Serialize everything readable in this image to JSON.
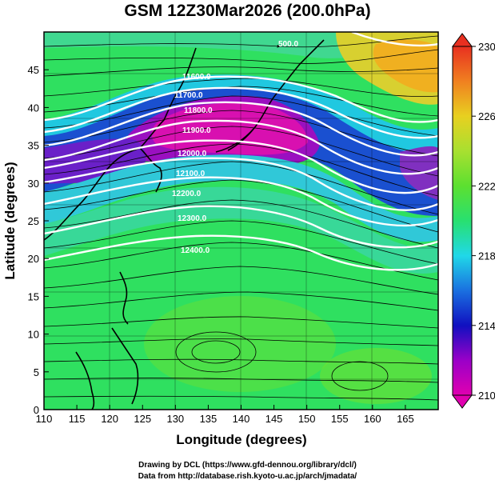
{
  "title": "GSM 12Z30Mar2026 (200.0hPa)",
  "x_axis": {
    "label": "Longitude (degrees)",
    "range": [
      110,
      170
    ],
    "ticks": [
      "110",
      "115",
      "120",
      "125",
      "130",
      "135",
      "140",
      "145",
      "150",
      "155",
      "160",
      "165"
    ]
  },
  "y_axis": {
    "label": "Latitude (degrees)",
    "range": [
      0,
      50
    ],
    "ticks": [
      "0",
      "5",
      "10",
      "15",
      "20",
      "25",
      "30",
      "35",
      "40",
      "45"
    ]
  },
  "colorbar": {
    "range": [
      210,
      230
    ],
    "ticks": [
      "210",
      "214",
      "218",
      "222",
      "226",
      "230"
    ],
    "colors": [
      "#e000b0",
      "#9a00c8",
      "#1010c0",
      "#1a70e0",
      "#20d8e8",
      "#28e070",
      "#70e030",
      "#c8e030",
      "#f0c020",
      "#f08020",
      "#e83020"
    ]
  },
  "contours": [
    {
      "label": "11600.0"
    },
    {
      "label": "11700.0"
    },
    {
      "label": "11800.0"
    },
    {
      "label": "11900.0"
    },
    {
      "label": "12000.0"
    },
    {
      "label": "12100.0"
    },
    {
      "label": "12200.0"
    },
    {
      "label": "12300.0"
    },
    {
      "label": "12400.0"
    }
  ],
  "top_label": "500.0",
  "credits": {
    "line1": "Drawing by DCL (https://www.gfd-dennou.org/library/dcl/)",
    "line2": "Data from http://database.rish.kyoto-u.ac.jp/arch/jmadata/"
  }
}
